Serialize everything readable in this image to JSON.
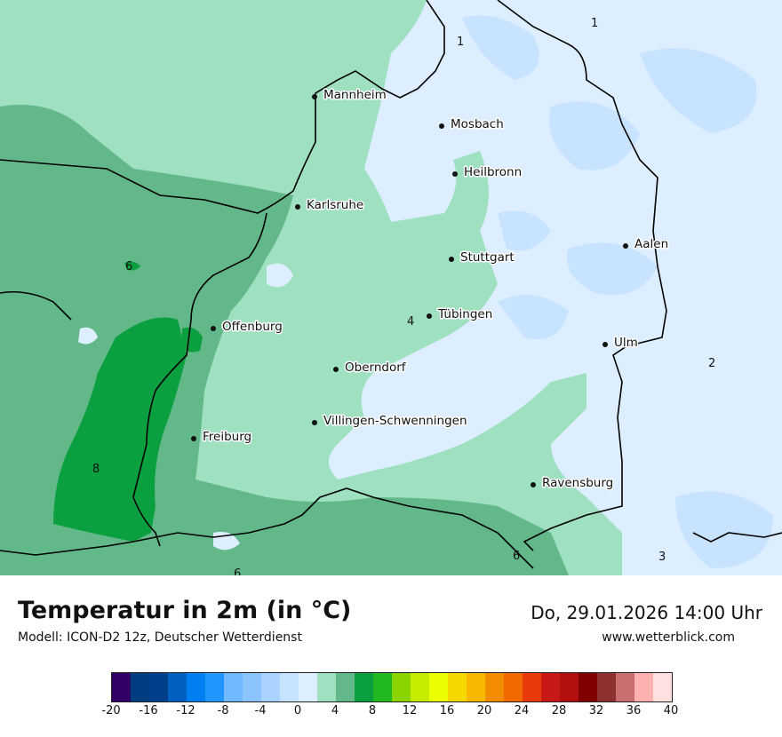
{
  "header": {
    "title": "Temperatur in 2m (in °C)",
    "subtitle": "Modell: ICON-D2 12z, Deutscher Wetterdienst",
    "datetime": "Do, 29.01.2026 14:00 Uhr",
    "site": "www.wetterblick.com"
  },
  "map": {
    "cities": [
      {
        "name": "Mannheim"
      },
      {
        "name": "Mosbach"
      },
      {
        "name": "Heilbronn"
      },
      {
        "name": "Karlsruhe"
      },
      {
        "name": "Aalen"
      },
      {
        "name": "Stuttgart"
      },
      {
        "name": "Tübingen"
      },
      {
        "name": "Offenburg"
      },
      {
        "name": "Ulm"
      },
      {
        "name": "Oberndorf"
      },
      {
        "name": "Villingen-Schwenningen"
      },
      {
        "name": "Freiburg"
      },
      {
        "name": "Ravensburg"
      }
    ],
    "isotherm_labels": [
      "1",
      "1",
      "6",
      "4",
      "2",
      "8",
      "6",
      "3",
      "6"
    ]
  },
  "legend": {
    "colors": [
      "#330066",
      "#003c80",
      "#003f8a",
      "#0060c0",
      "#0080f0",
      "#2196ff",
      "#70b8ff",
      "#8cc4ff",
      "#aad4ff",
      "#c8e3ff",
      "#dceeff",
      "#9ee0c0",
      "#62b888",
      "#0aa040",
      "#22b822",
      "#8cd400",
      "#c8ec00",
      "#ecff00",
      "#f4d800",
      "#f6b800",
      "#f48c00",
      "#f06a00",
      "#e83a0a",
      "#c81818",
      "#b01010",
      "#800000",
      "#8c3030",
      "#c87070",
      "#ffb0b0",
      "#ffe0e0"
    ],
    "ticks": [
      "-20",
      "-16",
      "-12",
      "-8",
      "-4",
      "0",
      "4",
      "8",
      "12",
      "16",
      "20",
      "24",
      "28",
      "32",
      "36",
      "40"
    ]
  }
}
